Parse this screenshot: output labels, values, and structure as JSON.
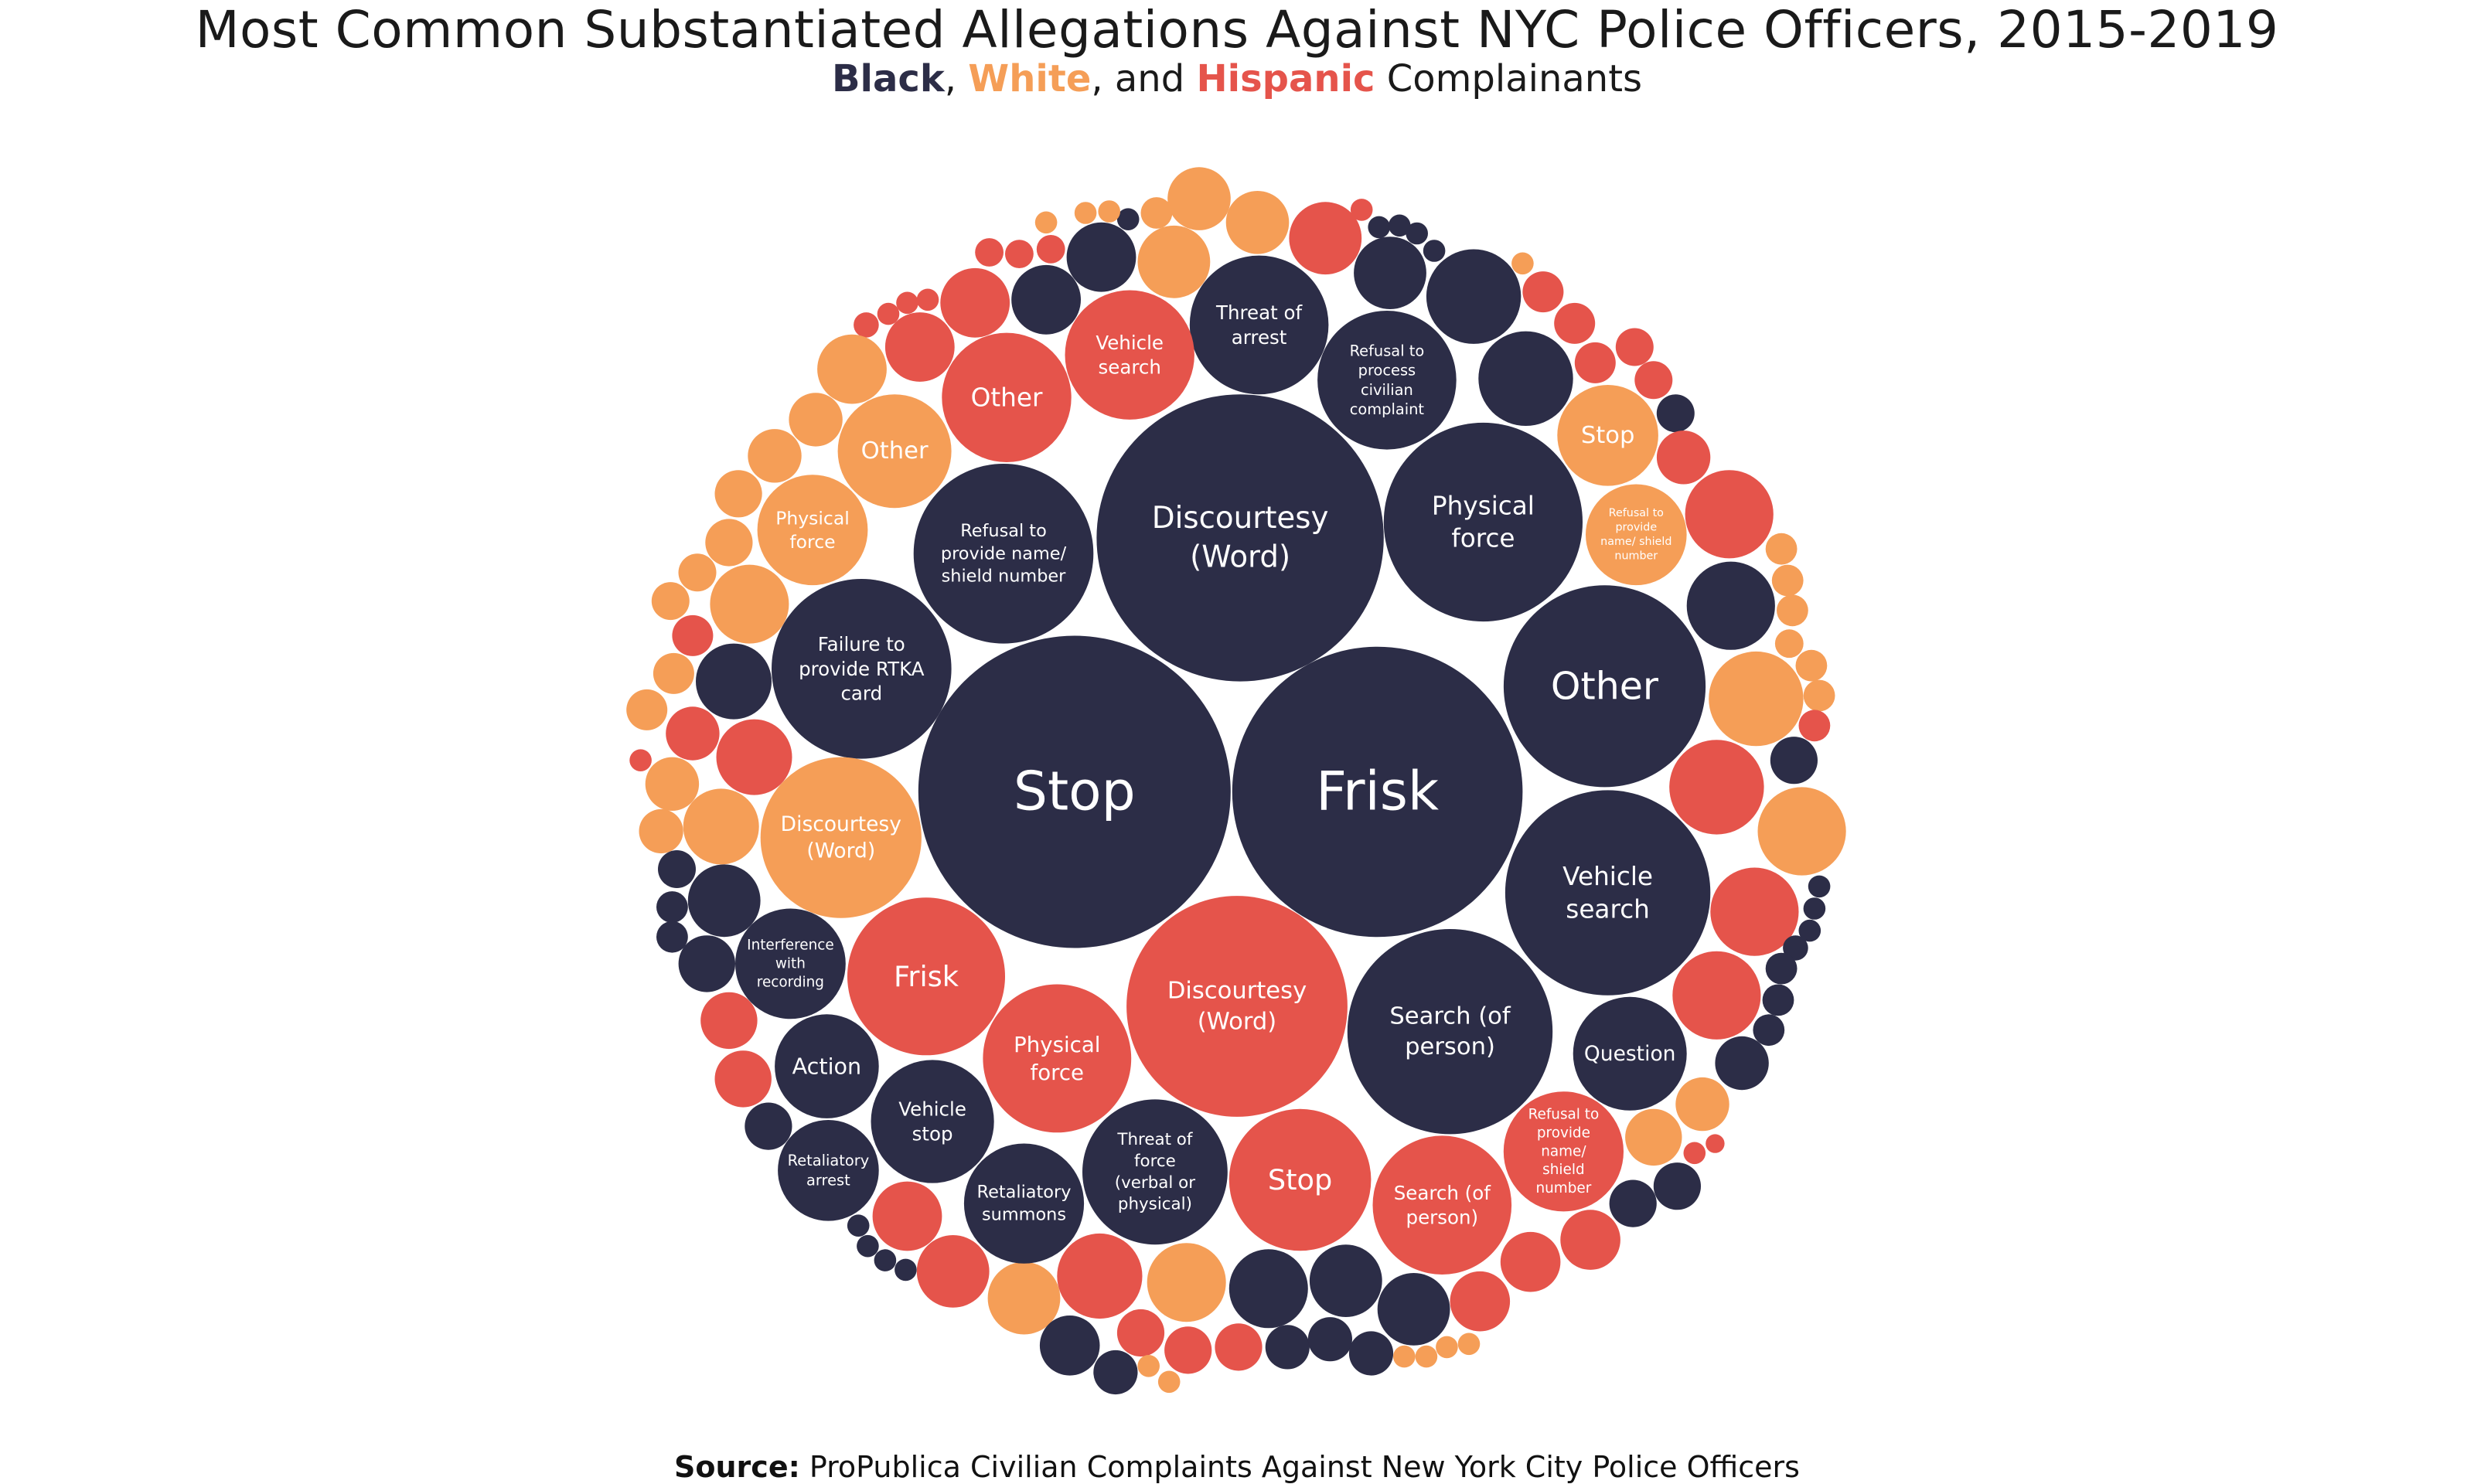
{
  "title": "Most Common Substantiated Allegations Against NYC Police Officers, 2015-2019",
  "subtitle": {
    "black": "Black",
    "sep1": ", ",
    "white": "White",
    "sep2": ", and ",
    "hispanic": "Hispanic",
    "rest": " Complainants"
  },
  "source": {
    "label": "Source:",
    "text": "ProPublica Civilian Complaints Against New York City Police Officers"
  },
  "colors": {
    "Black": "#2c2d47",
    "White": "#f59e57",
    "Hispanic": "#e5544b"
  },
  "chart_data": {
    "type": "bubble",
    "title": "Most Common Substantiated Allegations Against NYC Police Officers, 2015-2019",
    "subtitle": "Black, White, and Hispanic Complainants",
    "series": [
      "Black",
      "White",
      "Hispanic"
    ],
    "labeled_bubbles": [
      {
        "group": "Black",
        "label": "Stop"
      },
      {
        "group": "Black",
        "label": "Frisk"
      },
      {
        "group": "Black",
        "label": "Discourtesy (Word)"
      },
      {
        "group": "Black",
        "label": "Other"
      },
      {
        "group": "Black",
        "label": "Vehicle search"
      },
      {
        "group": "Black",
        "label": "Search (of person)"
      },
      {
        "group": "Black",
        "label": "Physical force"
      },
      {
        "group": "Black",
        "label": "Refusal to provide name/ shield number"
      },
      {
        "group": "Black",
        "label": "Failure to provide RTKA card"
      },
      {
        "group": "Black",
        "label": "Threat of arrest"
      },
      {
        "group": "Black",
        "label": "Refusal to process civilian complaint"
      },
      {
        "group": "Black",
        "label": "Question"
      },
      {
        "group": "Black",
        "label": "Threat of force (verbal or physical)"
      },
      {
        "group": "Black",
        "label": "Vehicle stop"
      },
      {
        "group": "Black",
        "label": "Action"
      },
      {
        "group": "Black",
        "label": "Retaliatory summons"
      },
      {
        "group": "Black",
        "label": "Retaliatory arrest"
      },
      {
        "group": "Black",
        "label": "Interference with recording"
      },
      {
        "group": "Hispanic",
        "label": "Discourtesy (Word)"
      },
      {
        "group": "Hispanic",
        "label": "Frisk"
      },
      {
        "group": "Hispanic",
        "label": "Stop"
      },
      {
        "group": "Hispanic",
        "label": "Physical force"
      },
      {
        "group": "Hispanic",
        "label": "Search (of person)"
      },
      {
        "group": "Hispanic",
        "label": "Other"
      },
      {
        "group": "Hispanic",
        "label": "Vehicle search"
      },
      {
        "group": "Hispanic",
        "label": "Refusal to provide name/ shield number"
      },
      {
        "group": "White",
        "label": "Discourtesy (Word)"
      },
      {
        "group": "White",
        "label": "Other"
      },
      {
        "group": "White",
        "label": "Physical force"
      },
      {
        "group": "White",
        "label": "Stop"
      },
      {
        "group": "White",
        "label": "Refusal to provide name/ shield number"
      }
    ]
  }
}
